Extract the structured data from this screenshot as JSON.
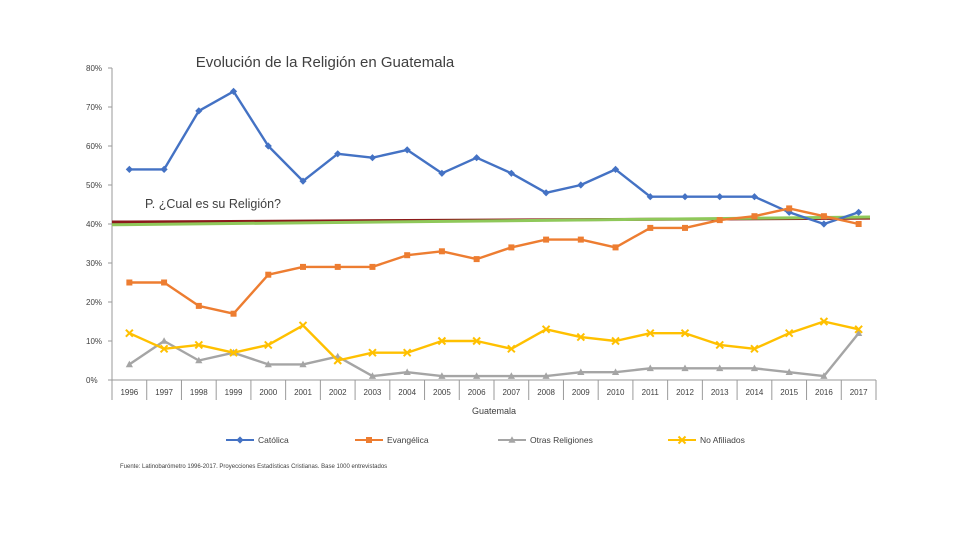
{
  "chart_data": {
    "type": "line",
    "title": "Evolución de la Religión en  Guatemala",
    "subtitle": "P. ¿Cual es su Religión?",
    "xlabel": "Guatemala",
    "ylabel": "",
    "ylim": [
      0,
      80
    ],
    "y_ticks": [
      "0%",
      "10%",
      "20%",
      "30%",
      "40%",
      "50%",
      "60%",
      "70%",
      "80%"
    ],
    "categories": [
      "1996",
      "1997",
      "1998",
      "1999",
      "2000",
      "2001",
      "2002",
      "2003",
      "2004",
      "2005",
      "2006",
      "2007",
      "2008",
      "2009",
      "2010",
      "2011",
      "2012",
      "2013",
      "2014",
      "2015",
      "2016",
      "2017"
    ],
    "series": [
      {
        "name": "Católica",
        "color": "#4472c4",
        "marker": "diamond",
        "values": [
          54,
          54,
          69,
          74,
          60,
          51,
          58,
          57,
          59,
          53,
          57,
          53,
          48,
          50,
          54,
          47,
          47,
          47,
          47,
          43,
          40,
          43
        ]
      },
      {
        "name": "Evangélica",
        "color": "#ed7d31",
        "marker": "square",
        "values": [
          25,
          25,
          19,
          17,
          27,
          29,
          29,
          29,
          32,
          33,
          31,
          34,
          36,
          36,
          34,
          39,
          39,
          41,
          42,
          44,
          42,
          40
        ]
      },
      {
        "name": "Otras Religiones",
        "color": "#a5a5a5",
        "marker": "triangle",
        "values": [
          4,
          10,
          5,
          7,
          4,
          4,
          6,
          1,
          2,
          1,
          1,
          1,
          1,
          2,
          2,
          3,
          3,
          3,
          3,
          2,
          1,
          12
        ]
      },
      {
        "name": "No Afiliados",
        "color": "#ffc000",
        "marker": "x",
        "values": [
          12,
          8,
          9,
          7,
          9,
          14,
          5,
          7,
          7,
          10,
          10,
          8,
          13,
          11,
          10,
          12,
          12,
          9,
          8,
          12,
          15,
          13
        ]
      }
    ],
    "trend_lines": [
      {
        "name": "trend-red",
        "color": "#8b1a1a",
        "values": [
          40.5,
          41.5
        ]
      },
      {
        "name": "trend-green",
        "color": "#8fc85a",
        "values": [
          39.8,
          41.8
        ]
      }
    ],
    "legend_position": "bottom",
    "source": "Fuente: Latinobarómetro 1996-2017. Proyecciones Estadísticas Cristianas. Base 1000 entrevistados"
  }
}
